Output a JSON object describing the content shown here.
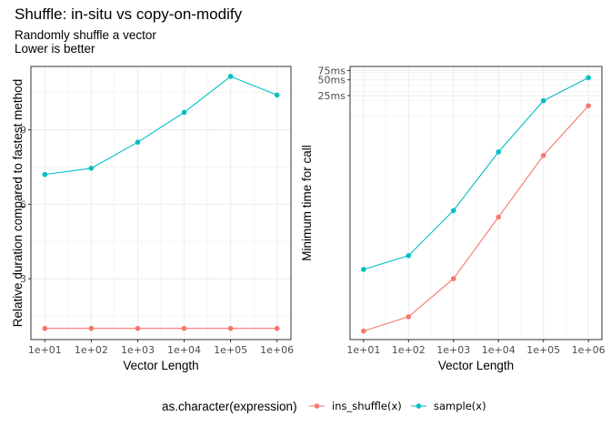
{
  "title": "Shuffle: in-situ vs copy-on-modify",
  "subtitle_line1": "Randomly shuffle a vector",
  "subtitle_line2": "Lower is better",
  "legend": {
    "title": "as.character(expression)",
    "items": [
      {
        "label": "ins_shuffle(x)",
        "color": "#F8766D"
      },
      {
        "label": "sample(x)",
        "color": "#00BFC4"
      }
    ]
  },
  "chart_data": [
    {
      "type": "line",
      "panel": "left",
      "xlabel": "Vector Length",
      "ylabel": "Relative duration compared to fastest method",
      "categories": [
        "1e+01",
        "1e+02",
        "1e+03",
        "1e+04",
        "1e+05",
        "1e+06"
      ],
      "y_ticks": [
        3,
        6,
        9
      ],
      "y_tick_labels": [
        "3",
        "6",
        "9"
      ],
      "ylim": [
        0.55,
        11.55
      ],
      "grid": true,
      "series": [
        {
          "name": "ins_shuffle(x)",
          "color": "#F8766D",
          "values": [
            1,
            1,
            1,
            1,
            1,
            1
          ]
        },
        {
          "name": "sample(x)",
          "color": "#00BFC4",
          "values": [
            7.2,
            7.45,
            8.5,
            9.7,
            11.15,
            10.4
          ]
        }
      ]
    },
    {
      "type": "line",
      "panel": "right",
      "xlabel": "Vector Length",
      "ylabel": "Minimum time for call",
      "categories": [
        "1e+01",
        "1e+02",
        "1e+03",
        "1e+04",
        "1e+05",
        "1e+06"
      ],
      "y_scale": "log10",
      "y_ticks_ms": [
        25,
        50,
        75
      ],
      "y_tick_labels": [
        "25ms",
        "50ms",
        "75ms"
      ],
      "ylim_ms": [
        0.00055,
        90
      ],
      "grid": true,
      "series": [
        {
          "name": "ins_shuffle(x)",
          "color": "#F8766D",
          "values_ms": [
            0.0008,
            0.0015,
            0.008,
            0.12,
            1.8,
            16
          ]
        },
        {
          "name": "sample(x)",
          "color": "#00BFC4",
          "values_ms": [
            0.012,
            0.022,
            0.16,
            2.1,
            20,
            55
          ]
        }
      ]
    }
  ]
}
